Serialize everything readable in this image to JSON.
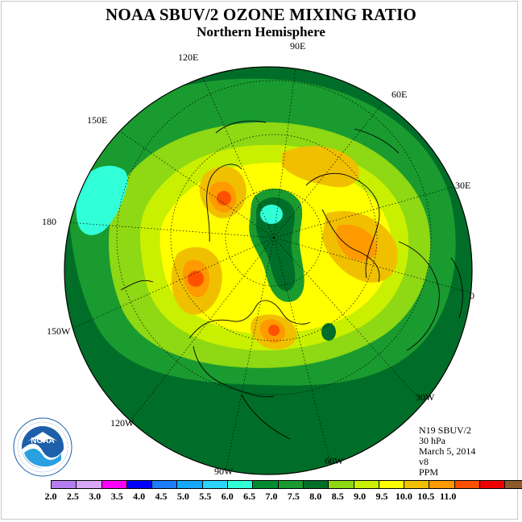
{
  "header": {
    "title": "NOAA SBUV/2 OZONE MIXING RATIO",
    "subtitle": "Northern Hemisphere"
  },
  "longitude_labels": [
    "90E",
    "120E",
    "60E",
    "150E",
    "30E",
    "180",
    "0",
    "150W",
    "30W",
    "120W",
    "60W",
    "90W"
  ],
  "info": {
    "instrument": "N19 SBUV/2",
    "level": "30 hPa",
    "date": "March 5, 2014",
    "version": "v8",
    "units": "PPM"
  },
  "colorbar": {
    "colors": [
      "#b57ef0",
      "#d9a8f7",
      "#ff00ff",
      "#0000ff",
      "#1e7cff",
      "#14a8ff",
      "#2bd3ff",
      "#30ffd8",
      "#008a32",
      "#1a9b2f",
      "#006e28",
      "#8ed814",
      "#c8f000",
      "#ffff00",
      "#f0c000",
      "#ff9a00",
      "#ff5000",
      "#ee0000",
      "#8b5a2b"
    ],
    "ticks": [
      "2.0",
      "2.5",
      "3.0",
      "3.5",
      "4.0",
      "4.5",
      "5.0",
      "5.5",
      "6.0",
      "6.5",
      "7.0",
      "7.5",
      "8.0",
      "8.5",
      "9.0",
      "9.5",
      "10.0",
      "10.5",
      "11.0"
    ]
  },
  "logo": {
    "text": "NOAA",
    "ring_text": "NATIONAL OCEANIC AND ATMOSPHERIC ADMINISTRATION · U.S. DEPARTMENT OF COMMERCE"
  },
  "map_colors": {
    "dark_green": "#006e28",
    "mid_green": "#1a9b2f",
    "light_green": "#8ed814",
    "yellow_green": "#c8f000",
    "yellow": "#ffff00",
    "orange": "#f0c000",
    "dark_orange": "#ff9a00",
    "red_orange": "#ff5000",
    "cyan": "#30ffd8"
  }
}
